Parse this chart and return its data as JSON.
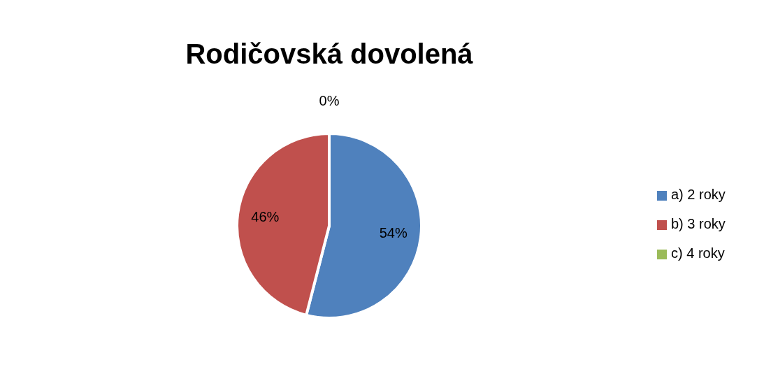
{
  "chart_data": {
    "type": "pie",
    "title": "Rodičovská dovolená",
    "categories": [
      "a) 2 roky",
      "b) 3 roky",
      "c) 4 roky"
    ],
    "values": [
      54,
      46,
      0
    ],
    "colors": [
      "#4f81bd",
      "#c0504d",
      "#9bbb59"
    ],
    "value_labels": [
      "54%",
      "46%",
      "0%"
    ],
    "data_labels": true,
    "legend": "right"
  }
}
